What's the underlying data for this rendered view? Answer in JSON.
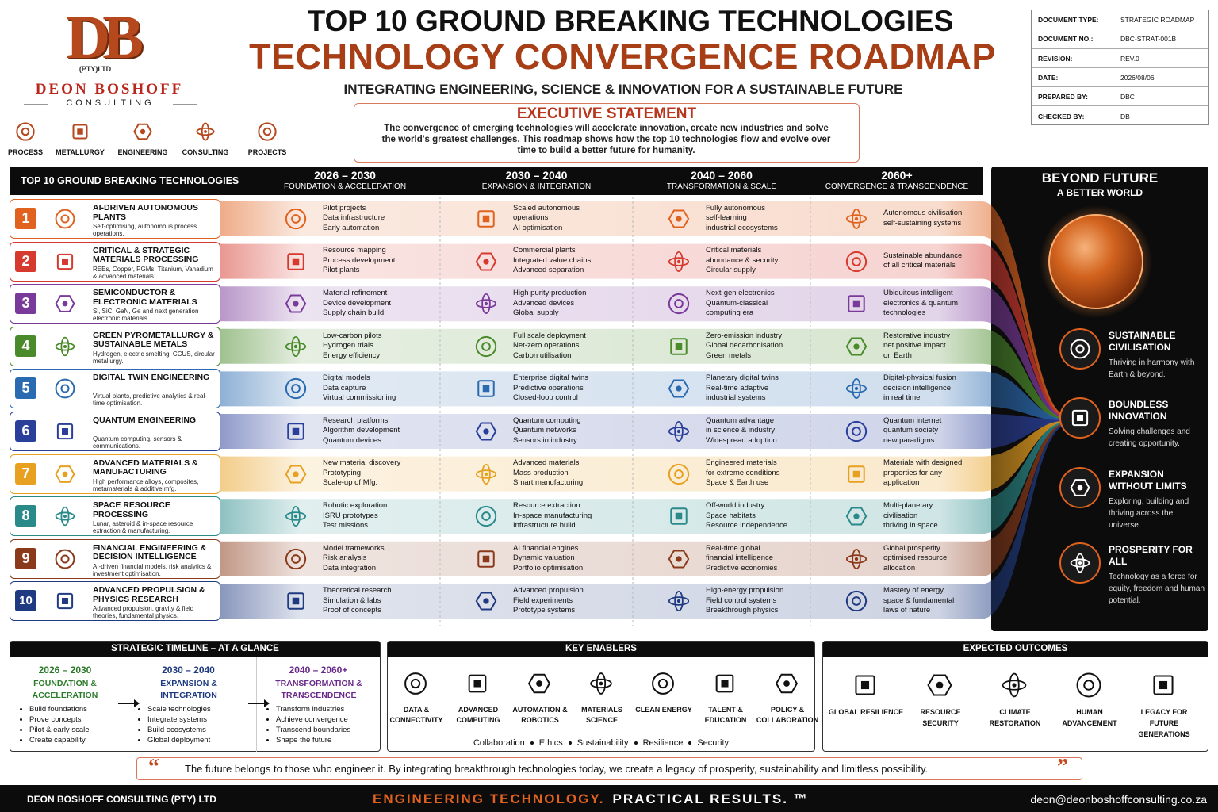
{
  "logo": {
    "initials": "DB",
    "legal": "(PTY)LTD",
    "name": "DEON BOSHOFF",
    "sub": "CONSULTING"
  },
  "services": [
    "PROCESS",
    "METALLURGY",
    "ENGINEERING",
    "CONSULTING",
    "PROJECTS"
  ],
  "header": {
    "title": "TOP 10 GROUND BREAKING TECHNOLOGIES",
    "subtitle": "TECHNOLOGY CONVERGENCE ROADMAP",
    "tagline": "INTEGRATING ENGINEERING, SCIENCE & INNOVATION FOR A SUSTAINABLE FUTURE"
  },
  "executive_statement": {
    "title": "EXECUTIVE STATEMENT",
    "text": "The convergence of emerging technologies will accelerate innovation, create new industries and solve the world's greatest challenges. This roadmap shows how the top 10 technologies flow and evolve over time to build a better future for humanity."
  },
  "document_info": {
    "rows": [
      [
        "DOCUMENT TYPE:",
        "STRATEGIC ROADMAP"
      ],
      [
        "DOCUMENT NO.:",
        "DBC-STRAT-001B"
      ],
      [
        "REVISION:",
        "REV.0"
      ],
      [
        "DATE:",
        "2026/08/06"
      ],
      [
        "PREPARED BY:",
        "DBC"
      ],
      [
        "CHECKED BY:",
        "DB"
      ]
    ]
  },
  "roadmap": {
    "heading": "TOP 10 GROUND BREAKING TECHNOLOGIES",
    "phases": [
      {
        "period": "2026 – 2030",
        "name": "FOUNDATION & ACCELERATION"
      },
      {
        "period": "2030 – 2040",
        "name": "EXPANSION & INTEGRATION"
      },
      {
        "period": "2040 – 2060",
        "name": "TRANSFORMATION & SCALE"
      },
      {
        "period": "2060+",
        "name": "CONVERGENCE & TRANSCENDENCE"
      }
    ],
    "technologies": [
      {
        "number": "1",
        "color": "#e0621e",
        "name": "AI-DRIVEN AUTONOMOUS PLANTS",
        "description": "Self-optimising, autonomous process operations.",
        "milestones": [
          [
            "Pilot projects",
            "Data infrastructure",
            "Early automation"
          ],
          [
            "Scaled autonomous",
            "operations",
            "AI optimisation"
          ],
          [
            "Fully autonomous",
            "self-learning",
            "industrial ecosystems"
          ],
          [
            "Autonomous civilisation",
            "self-sustaining systems"
          ]
        ]
      },
      {
        "number": "2",
        "color": "#d63a2f",
        "name": "CRITICAL & STRATEGIC MATERIALS PROCESSING",
        "description": "REEs, Copper, PGMs, Titanium, Vanadium & advanced materials.",
        "milestones": [
          [
            "Resource mapping",
            "Process development",
            "Pilot plants"
          ],
          [
            "Commercial plants",
            "Integrated value chains",
            "Advanced separation"
          ],
          [
            "Critical materials",
            "abundance & security",
            "Circular supply"
          ],
          [
            "Sustainable abundance",
            "of all critical materials"
          ]
        ]
      },
      {
        "number": "3",
        "color": "#7a3a9a",
        "name": "SEMICONDUCTOR & ELECTRONIC MATERIALS",
        "description": "Si, SiC, GaN, Ge and next generation electronic materials.",
        "milestones": [
          [
            "Material refinement",
            "Device development",
            "Supply chain build"
          ],
          [
            "High purity production",
            "Advanced devices",
            "Global supply"
          ],
          [
            "Next-gen electronics",
            "Quantum-classical",
            "computing era"
          ],
          [
            "Ubiquitous intelligent",
            "electronics & quantum",
            "technologies"
          ]
        ]
      },
      {
        "number": "4",
        "color": "#4a8a2a",
        "name": "GREEN PYROMETALLURGY & SUSTAINABLE METALS",
        "description": "Hydrogen, electric smelting, CCUS, circular metallurgy.",
        "milestones": [
          [
            "Low-carbon pilots",
            "Hydrogen trials",
            "Energy efficiency"
          ],
          [
            "Full scale deployment",
            "Net-zero operations",
            "Carbon utilisation"
          ],
          [
            "Zero-emission industry",
            "Global decarbonisation",
            "Green metals"
          ],
          [
            "Restorative industry",
            "net positive impact",
            "on Earth"
          ]
        ]
      },
      {
        "number": "5",
        "color": "#2a6ab0",
        "name": "DIGITAL TWIN ENGINEERING",
        "description": "Virtual plants, predictive analytics & real-time optimisation.",
        "milestones": [
          [
            "Digital models",
            "Data capture",
            "Virtual commissioning"
          ],
          [
            "Enterprise digital twins",
            "Predictive operations",
            "Closed-loop control"
          ],
          [
            "Planetary digital twins",
            "Real-time adaptive",
            "industrial systems"
          ],
          [
            "Digital-physical fusion",
            "decision intelligence",
            "in real time"
          ]
        ]
      },
      {
        "number": "6",
        "color": "#2a3f9a",
        "name": "QUANTUM ENGINEERING",
        "description": "Quantum computing, sensors & communications.",
        "milestones": [
          [
            "Research platforms",
            "Algorithm development",
            "Quantum devices"
          ],
          [
            "Quantum computing",
            "Quantum networks",
            "Sensors in industry"
          ],
          [
            "Quantum advantage",
            "in science & industry",
            "Widespread adoption"
          ],
          [
            "Quantum internet",
            "quantum society",
            "new paradigms"
          ]
        ]
      },
      {
        "number": "7",
        "color": "#e8a020",
        "name": "ADVANCED MATERIALS & MANUFACTURING",
        "description": "High performance alloys, composites, metamaterials & additive mfg.",
        "milestones": [
          [
            "New material discovery",
            "Prototyping",
            "Scale-up of Mfg."
          ],
          [
            "Advanced materials",
            "Mass production",
            "Smart manufacturing"
          ],
          [
            "Engineered materials",
            "for extreme conditions",
            "Space & Earth use"
          ],
          [
            "Materials with designed",
            "properties for any",
            "application"
          ]
        ]
      },
      {
        "number": "8",
        "color": "#2a8a8a",
        "name": "SPACE RESOURCE PROCESSING",
        "description": "Lunar, asteroid & in-space resource extraction & manufacturing.",
        "milestones": [
          [
            "Robotic exploration",
            "ISRU prototypes",
            "Test missions"
          ],
          [
            "Resource extraction",
            "In-space manufacturing",
            "Infrastructure build"
          ],
          [
            "Off-world industry",
            "Space habitats",
            "Resource independence"
          ],
          [
            "Multi-planetary",
            "civilisation",
            "thriving in space"
          ]
        ]
      },
      {
        "number": "9",
        "color": "#8a3a1a",
        "name": "FINANCIAL ENGINEERING & DECISION INTELLIGENCE",
        "description": "AI-driven financial models, risk analytics & investment optimisation.",
        "milestones": [
          [
            "Model frameworks",
            "Risk analysis",
            "Data integration"
          ],
          [
            "AI financial engines",
            "Dynamic valuation",
            "Portfolio optimisation"
          ],
          [
            "Real-time global",
            "financial intelligence",
            "Predictive economies"
          ],
          [
            "Global prosperity",
            "optimised resource",
            "allocation"
          ]
        ]
      },
      {
        "number": "10",
        "color": "#1f3a80",
        "name": "ADVANCED PROPULSION & PHYSICS RESEARCH",
        "description": "Advanced propulsion, gravity & field theories, fundamental physics.",
        "milestones": [
          [
            "Theoretical research",
            "Simulation & labs",
            "Proof of concepts"
          ],
          [
            "Advanced propulsion",
            "Field experiments",
            "Prototype systems"
          ],
          [
            "High-energy propulsion",
            "Field control systems",
            "Breakthrough physics"
          ],
          [
            "Mastery of energy,",
            "space & fundamental",
            "laws of nature"
          ]
        ]
      }
    ]
  },
  "beyond": {
    "title": "BEYOND FUTURE",
    "subtitle": "A BETTER WORLD",
    "items": [
      {
        "title": "SUSTAINABLE CIVILISATION",
        "text": "Thriving in harmony with Earth & beyond."
      },
      {
        "title": "BOUNDLESS INNOVATION",
        "text": "Solving challenges and creating opportunity."
      },
      {
        "title": "EXPANSION WITHOUT LIMITS",
        "text": "Exploring, building and thriving across the universe."
      },
      {
        "title": "PROSPERITY FOR ALL",
        "text": "Technology as a force for equity, freedom and human potential."
      }
    ]
  },
  "timeline": {
    "title": "STRATEGIC TIMELINE – AT A GLANCE",
    "phases": [
      {
        "period": "2026 – 2030",
        "name": "FOUNDATION & ACCELERATION",
        "bullets": [
          "Build foundations",
          "Prove concepts",
          "Pilot & early scale",
          "Create capability"
        ]
      },
      {
        "period": "2030 – 2040",
        "name": "EXPANSION & INTEGRATION",
        "bullets": [
          "Scale technologies",
          "Integrate systems",
          "Build ecosystems",
          "Global deployment"
        ]
      },
      {
        "period": "2040 – 2060+",
        "name": "TRANSFORMATION & TRANSCENDENCE",
        "bullets": [
          "Transform industries",
          "Achieve convergence",
          "Transcend boundaries",
          "Shape the future"
        ]
      }
    ]
  },
  "enablers": {
    "title": "KEY ENABLERS",
    "items": [
      "DATA & CONNECTIVITY",
      "ADVANCED COMPUTING",
      "AUTOMATION & ROBOTICS",
      "MATERIALS SCIENCE",
      "CLEAN ENERGY",
      "TALENT & EDUCATION",
      "POLICY & COLLABORATION"
    ],
    "values": [
      "Collaboration",
      "Ethics",
      "Sustainability",
      "Resilience",
      "Security"
    ]
  },
  "outcomes": {
    "title": "EXPECTED OUTCOMES",
    "items": [
      "GLOBAL RESILIENCE",
      "RESOURCE SECURITY",
      "CLIMATE RESTORATION",
      "HUMAN ADVANCEMENT",
      "LEGACY FOR FUTURE GENERATIONS"
    ]
  },
  "quote": {
    "open": "“",
    "text": "The future belongs to those who engineer it.  By integrating breakthrough technologies today, we create a legacy of prosperity, sustainability and limitless possibility.",
    "close": "”"
  },
  "footer": {
    "company": "DEON BOSHOFF CONSULTING (PTY) LTD",
    "slogan_1": "ENGINEERING TECHNOLOGY.",
    "slogan_2": "PRACTICAL RESULTS. ™",
    "email": "deon@deonboshoffconsulting.co.za"
  }
}
